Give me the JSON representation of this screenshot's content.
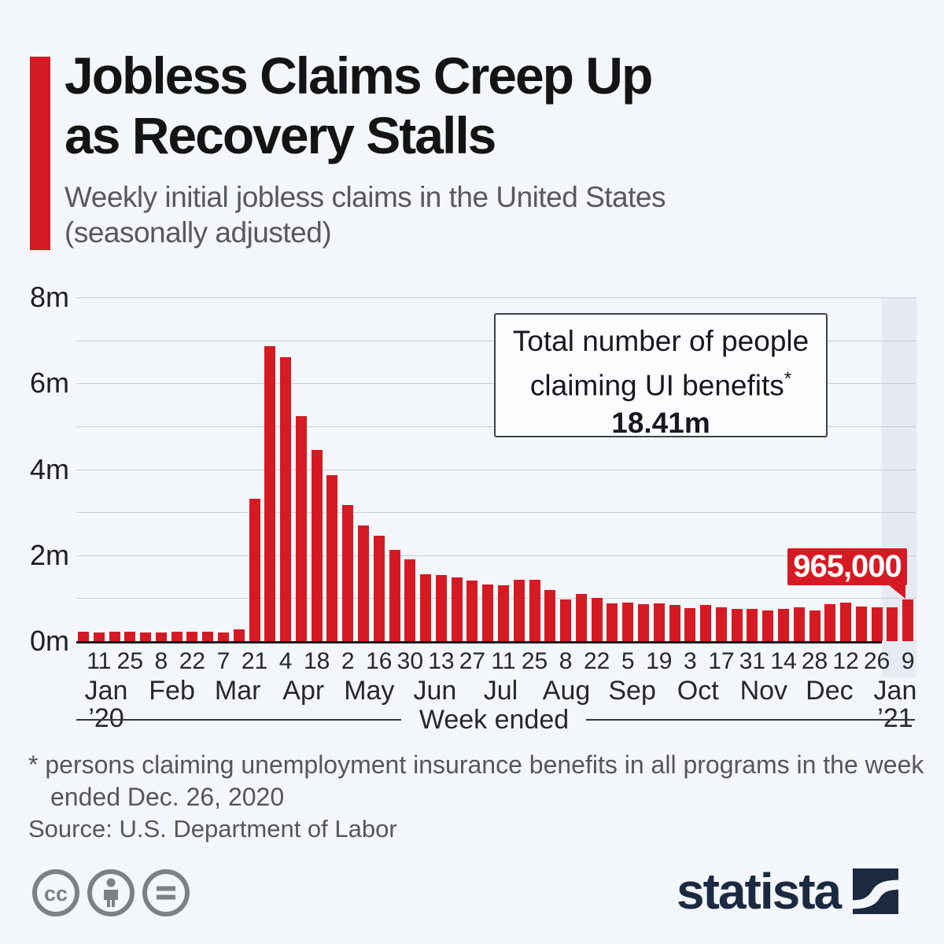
{
  "title": {
    "line1": "Jobless Claims Creep Up",
    "line2": "as Recovery Stalls"
  },
  "subtitle": {
    "line1": "Weekly initial jobless claims in the United States",
    "line2": "(seasonally adjusted)"
  },
  "annotation": {
    "line1": "Total number of people",
    "line2": "claiming UI benefits",
    "asterisk": "*",
    "value": "18.41m"
  },
  "callout": {
    "value": "965,000"
  },
  "axis": {
    "y_labels": [
      "8m",
      "6m",
      "4m",
      "2m",
      "0m"
    ],
    "x_title": "Week ended"
  },
  "footnote": {
    "line1": "* persons claiming unemployment insurance benefits in all programs in the week",
    "line2": "ended Dec. 26, 2020"
  },
  "source": "Source: U.S. Department of Labor",
  "branding": {
    "logo_text": "statista"
  },
  "license_icons": [
    "cc-icon",
    "attribution-person-icon",
    "equals-icon"
  ],
  "colors": {
    "background": "#f3f6fa",
    "bar_red": "#d61a23",
    "highlight_band": "#e6ebf3",
    "navy": "#1b2a40",
    "gridline": "#c8cdd5",
    "text_gray": "#58595c"
  },
  "chart_data": {
    "type": "bar",
    "title": "Weekly initial jobless claims in the United States (seasonally adjusted)",
    "unit": "millions of claims",
    "ylim": [
      0,
      8
    ],
    "gridline_interval_millions": 1,
    "labeled_y_ticks": [
      "0m",
      "2m",
      "4m",
      "6m",
      "8m"
    ],
    "xlabel": "Week ended",
    "legend": "none",
    "highlighted_bar": "Jan 9 '21",
    "highlighted_bar_value_label": "965,000",
    "total_claiming_ui_benefits": "18.41m",
    "values_millions": [
      0.214,
      0.207,
      0.22,
      0.212,
      0.201,
      0.204,
      0.215,
      0.22,
      0.217,
      0.211,
      0.282,
      3.307,
      6.867,
      6.615,
      5.237,
      4.442,
      3.867,
      3.176,
      2.687,
      2.446,
      2.123,
      1.897,
      1.566,
      1.54,
      1.482,
      1.413,
      1.31,
      1.307,
      1.422,
      1.434,
      1.186,
      0.971,
      1.104,
      1.006,
      0.884,
      0.893,
      0.866,
      0.873,
      0.849,
      0.767,
      0.842,
      0.791,
      0.758,
      0.757,
      0.711,
      0.748,
      0.787,
      0.716,
      0.862,
      0.892,
      0.806,
      0.782,
      0.787,
      0.965
    ],
    "tick_labels": [
      "",
      "11",
      "",
      "25",
      "",
      "8",
      "",
      "22",
      "",
      "7",
      "",
      "21",
      "",
      "4",
      "",
      "18",
      "",
      "2",
      "",
      "16",
      "",
      "30",
      "",
      "13",
      "",
      "27",
      "",
      "11",
      "",
      "25",
      "",
      "8",
      "",
      "22",
      "",
      "5",
      "",
      "19",
      "",
      "3",
      "",
      "17",
      "",
      "31",
      "",
      "14",
      "",
      "28",
      "",
      "12",
      "",
      "26",
      "",
      "9"
    ],
    "months": [
      {
        "label": "Jan",
        "year": "’20"
      },
      {
        "label": "Feb"
      },
      {
        "label": "Mar"
      },
      {
        "label": "Apr"
      },
      {
        "label": "May"
      },
      {
        "label": "Jun"
      },
      {
        "label": "Jul"
      },
      {
        "label": "Aug"
      },
      {
        "label": "Sep"
      },
      {
        "label": "Oct"
      },
      {
        "label": "Nov"
      },
      {
        "label": "Dec"
      },
      {
        "label": "Jan",
        "year": "’21"
      }
    ]
  }
}
